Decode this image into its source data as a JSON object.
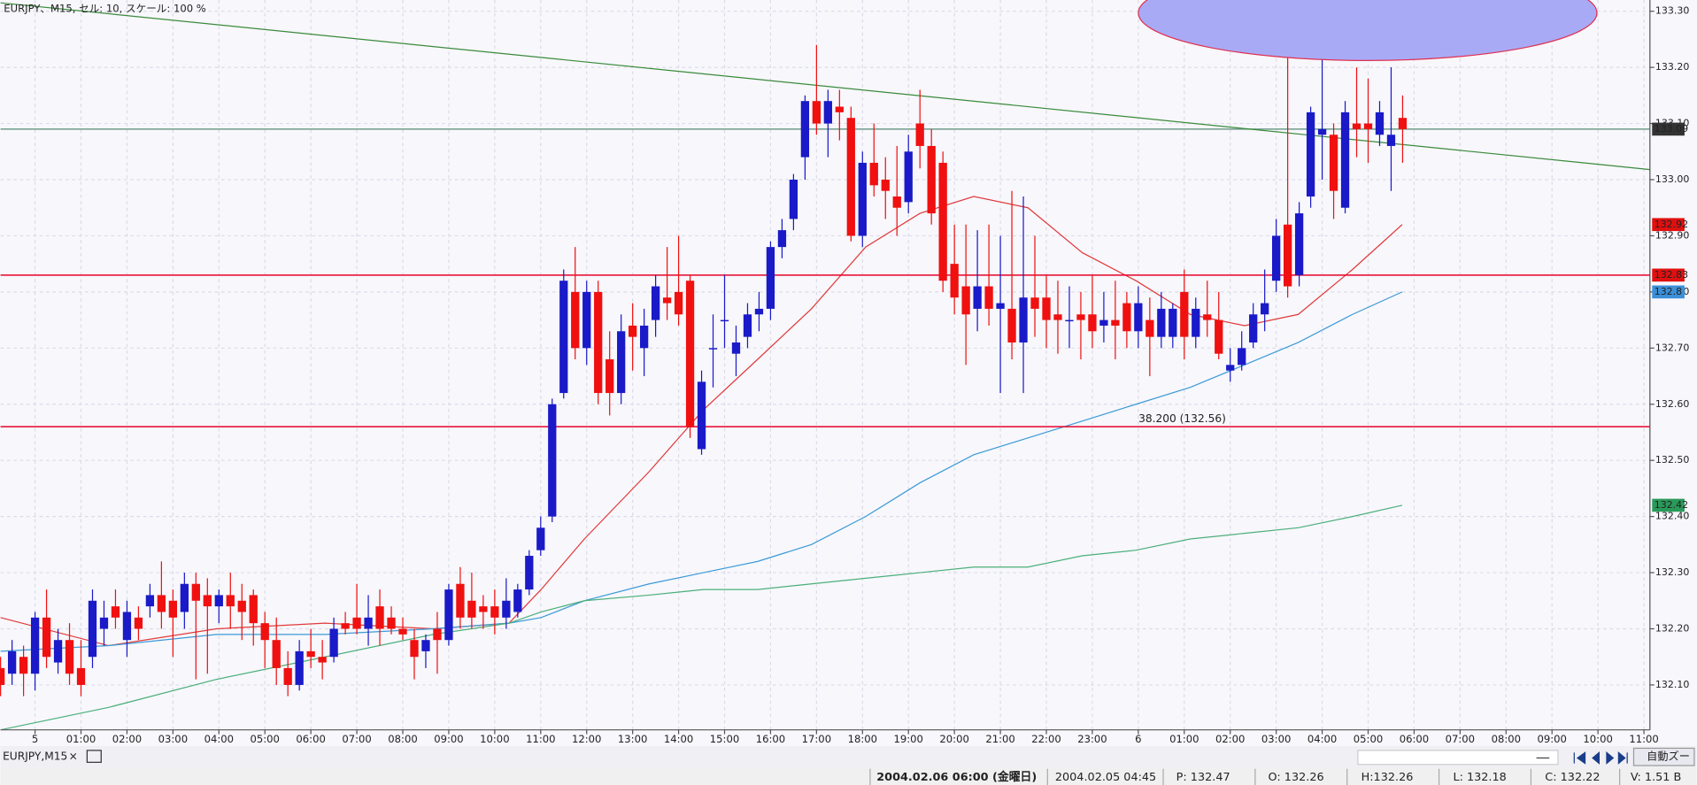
{
  "window": {
    "title": "EURJPY、M15, セル: 10, スケール: 100 %",
    "tab": "EURJPY,M15",
    "zoom_button": "自動ズー",
    "status": [
      "2004.02.06 06:00 (金曜日)",
      "2004.02.05 04:45",
      "P: 132.47",
      "O: 132.26",
      "H:132.26",
      "L: 132.18",
      "C: 132.22",
      "V: 1.51 B"
    ]
  },
  "chart_data": {
    "type": "candlestick",
    "xlim": [
      -0.75,
      35.13
    ],
    "ylim": [
      132.02,
      133.32
    ],
    "grid": true,
    "up_color": "#1a1ac8",
    "down_color": "#f01010",
    "xticks": [
      {
        "value": 0,
        "label": "5"
      },
      {
        "value": 1,
        "label": "01:00"
      },
      {
        "value": 2,
        "label": "02:00"
      },
      {
        "value": 3,
        "label": "03:00"
      },
      {
        "value": 4,
        "label": "04:00"
      },
      {
        "value": 5,
        "label": "05:00"
      },
      {
        "value": 6,
        "label": "06:00"
      },
      {
        "value": 7,
        "label": "07:00"
      },
      {
        "value": 8,
        "label": "08:00"
      },
      {
        "value": 9,
        "label": "09:00"
      },
      {
        "value": 10,
        "label": "10:00"
      },
      {
        "value": 11,
        "label": "11:00"
      },
      {
        "value": 12,
        "label": "12:00"
      },
      {
        "value": 13,
        "label": "13:00"
      },
      {
        "value": 14,
        "label": "14:00"
      },
      {
        "value": 15,
        "label": "15:00"
      },
      {
        "value": 16,
        "label": "16:00"
      },
      {
        "value": 17,
        "label": "17:00"
      },
      {
        "value": 18,
        "label": "18:00"
      },
      {
        "value": 19,
        "label": "19:00"
      },
      {
        "value": 20,
        "label": "20:00"
      },
      {
        "value": 21,
        "label": "21:00"
      },
      {
        "value": 22,
        "label": "22:00"
      },
      {
        "value": 23,
        "label": "23:00"
      },
      {
        "value": 24,
        "label": "6"
      },
      {
        "value": 25,
        "label": "01:00"
      },
      {
        "value": 26,
        "label": "02:00"
      },
      {
        "value": 27,
        "label": "03:00"
      },
      {
        "value": 28,
        "label": "04:00"
      },
      {
        "value": 29,
        "label": "05:00"
      },
      {
        "value": 30,
        "label": "06:00"
      },
      {
        "value": 31,
        "label": "07:00"
      },
      {
        "value": 32,
        "label": "08:00"
      },
      {
        "value": 33,
        "label": "09:00"
      },
      {
        "value": 34,
        "label": "10:00"
      },
      {
        "value": 35,
        "label": "11:00"
      }
    ],
    "yticks": [
      {
        "value": 132.1,
        "label": "132.10"
      },
      {
        "value": 132.2,
        "label": "132.20"
      },
      {
        "value": 132.3,
        "label": "132.30"
      },
      {
        "value": 132.4,
        "label": "132.40"
      },
      {
        "value": 132.5,
        "label": "132.50"
      },
      {
        "value": 132.6,
        "label": "132.60"
      },
      {
        "value": 132.7,
        "label": "132.70"
      },
      {
        "value": 132.8,
        "label": "132.80"
      },
      {
        "value": 132.9,
        "label": "132.90"
      },
      {
        "value": 133.0,
        "label": "133.00"
      },
      {
        "value": 133.1,
        "label": "133.10"
      },
      {
        "value": 133.2,
        "label": "133.20"
      },
      {
        "value": 133.3,
        "label": "133.30"
      }
    ],
    "x": [
      -0.75,
      -0.5,
      -0.25,
      0,
      0.25,
      0.5,
      0.75,
      1,
      1.25,
      1.5,
      1.75,
      2,
      2.25,
      2.5,
      2.75,
      3,
      3.25,
      3.5,
      3.75,
      4,
      4.25,
      4.5,
      4.75,
      5,
      5.25,
      5.5,
      5.75,
      6,
      6.25,
      6.5,
      6.75,
      7,
      7.25,
      7.5,
      7.75,
      8,
      8.25,
      8.5,
      8.75,
      9,
      9.25,
      9.5,
      9.75,
      10,
      10.25,
      10.5,
      10.75,
      11,
      11.25,
      11.5,
      11.75,
      12,
      12.25,
      12.5,
      12.75,
      13,
      13.25,
      13.5,
      13.75,
      14,
      14.25,
      14.5,
      14.75,
      15,
      15.25,
      15.5,
      15.75,
      16,
      16.25,
      16.5,
      16.75,
      17,
      17.25,
      17.5,
      17.75,
      18,
      18.25,
      18.5,
      18.75,
      19,
      19.25,
      19.5,
      19.75,
      20,
      20.25,
      20.5,
      20.75,
      21,
      21.25,
      21.5,
      21.75,
      22,
      22.25,
      22.5,
      22.75,
      23,
      23.25,
      23.5,
      23.75,
      24,
      24.25,
      24.5,
      24.75,
      25,
      25.25,
      25.5,
      25.75,
      26,
      26.25,
      26.5,
      26.75,
      27,
      27.25,
      27.5,
      27.75,
      28,
      28.25,
      28.5,
      28.75,
      29,
      29.25,
      29.5,
      29.75
    ],
    "ohlc": [
      [
        132.13,
        132.15,
        132.08,
        132.1
      ],
      [
        132.12,
        132.18,
        132.1,
        132.16
      ],
      [
        132.15,
        132.17,
        132.08,
        132.12
      ],
      [
        132.12,
        132.23,
        132.09,
        132.22
      ],
      [
        132.22,
        132.27,
        132.13,
        132.15
      ],
      [
        132.14,
        132.2,
        132.12,
        132.18
      ],
      [
        132.18,
        132.21,
        132.1,
        132.12
      ],
      [
        132.13,
        132.18,
        132.08,
        132.1
      ],
      [
        132.15,
        132.27,
        132.13,
        132.25
      ],
      [
        132.2,
        132.25,
        132.17,
        132.22
      ],
      [
        132.24,
        132.27,
        132.2,
        132.22
      ],
      [
        132.18,
        132.25,
        132.15,
        132.23
      ],
      [
        132.22,
        132.24,
        132.18,
        132.2
      ],
      [
        132.24,
        132.28,
        132.22,
        132.26
      ],
      [
        132.26,
        132.32,
        132.2,
        132.23
      ],
      [
        132.25,
        132.27,
        132.15,
        132.22
      ],
      [
        132.23,
        132.3,
        132.2,
        132.28
      ],
      [
        132.28,
        132.3,
        132.11,
        132.25
      ],
      [
        132.26,
        132.29,
        132.12,
        132.24
      ],
      [
        132.24,
        132.27,
        132.21,
        132.26
      ],
      [
        132.26,
        132.3,
        132.2,
        132.24
      ],
      [
        132.25,
        132.28,
        132.18,
        132.23
      ],
      [
        132.26,
        132.27,
        132.17,
        132.21
      ],
      [
        132.21,
        132.23,
        132.13,
        132.18
      ],
      [
        132.18,
        132.22,
        132.1,
        132.13
      ],
      [
        132.13,
        132.16,
        132.08,
        132.1
      ],
      [
        132.1,
        132.18,
        132.09,
        132.16
      ],
      [
        132.16,
        132.2,
        132.13,
        132.15
      ],
      [
        132.15,
        132.18,
        132.11,
        132.14
      ],
      [
        132.15,
        132.22,
        132.14,
        132.2
      ],
      [
        132.21,
        132.23,
        132.19,
        132.2
      ],
      [
        132.22,
        132.28,
        132.19,
        132.2
      ],
      [
        132.2,
        132.26,
        132.17,
        132.22
      ],
      [
        132.24,
        132.27,
        132.17,
        132.2
      ],
      [
        132.22,
        132.24,
        132.19,
        132.2
      ],
      [
        132.2,
        132.22,
        132.18,
        132.19
      ],
      [
        132.18,
        132.2,
        132.11,
        132.15
      ],
      [
        132.16,
        132.19,
        132.13,
        132.18
      ],
      [
        132.2,
        132.23,
        132.12,
        132.18
      ],
      [
        132.18,
        132.28,
        132.17,
        132.27
      ],
      [
        132.28,
        132.31,
        132.2,
        132.22
      ],
      [
        132.25,
        132.3,
        132.2,
        132.22
      ],
      [
        132.24,
        132.26,
        132.2,
        132.23
      ],
      [
        132.24,
        132.27,
        132.19,
        132.22
      ],
      [
        132.22,
        132.29,
        132.2,
        132.25
      ],
      [
        132.23,
        132.28,
        132.22,
        132.27
      ],
      [
        132.27,
        132.34,
        132.26,
        132.33
      ],
      [
        132.34,
        132.4,
        132.33,
        132.38
      ],
      [
        132.4,
        132.61,
        132.39,
        132.6
      ],
      [
        132.62,
        132.84,
        132.61,
        132.82
      ],
      [
        132.8,
        132.88,
        132.68,
        132.7
      ],
      [
        132.7,
        132.82,
        132.67,
        132.8
      ],
      [
        132.8,
        132.82,
        132.6,
        132.62
      ],
      [
        132.68,
        132.73,
        132.58,
        132.62
      ],
      [
        132.62,
        132.76,
        132.6,
        132.73
      ],
      [
        132.74,
        132.78,
        132.66,
        132.72
      ],
      [
        132.7,
        132.77,
        132.65,
        132.74
      ],
      [
        132.75,
        132.83,
        132.72,
        132.81
      ],
      [
        132.79,
        132.88,
        132.75,
        132.78
      ],
      [
        132.8,
        132.9,
        132.74,
        132.76
      ],
      [
        132.82,
        132.83,
        132.54,
        132.56
      ],
      [
        132.52,
        132.66,
        132.51,
        132.64
      ],
      [
        132.7,
        132.76,
        132.63,
        132.7
      ],
      [
        132.75,
        132.83,
        132.7,
        132.75
      ],
      [
        132.69,
        132.74,
        132.65,
        132.71
      ],
      [
        132.72,
        132.78,
        132.7,
        132.76
      ],
      [
        132.76,
        132.8,
        132.73,
        132.77
      ],
      [
        132.77,
        132.89,
        132.75,
        132.88
      ],
      [
        132.88,
        132.93,
        132.86,
        132.91
      ],
      [
        132.93,
        133.01,
        132.91,
        133.0
      ],
      [
        133.04,
        133.15,
        133.0,
        133.14
      ],
      [
        133.14,
        133.24,
        133.08,
        133.1
      ],
      [
        133.1,
        133.16,
        133.04,
        133.14
      ],
      [
        133.13,
        133.16,
        133.07,
        133.12
      ],
      [
        133.11,
        133.13,
        132.89,
        132.9
      ],
      [
        132.9,
        133.05,
        132.88,
        133.03
      ],
      [
        133.03,
        133.1,
        132.97,
        132.99
      ],
      [
        133.0,
        133.04,
        132.93,
        132.98
      ],
      [
        132.97,
        133.06,
        132.9,
        132.95
      ],
      [
        132.96,
        133.08,
        132.94,
        133.05
      ],
      [
        133.1,
        133.16,
        133.02,
        133.06
      ],
      [
        133.06,
        133.09,
        132.92,
        132.94
      ],
      [
        133.03,
        133.05,
        132.8,
        132.82
      ],
      [
        132.85,
        132.92,
        132.76,
        132.79
      ],
      [
        132.81,
        132.92,
        132.67,
        132.76
      ],
      [
        132.77,
        132.91,
        132.73,
        132.81
      ],
      [
        132.81,
        132.92,
        132.74,
        132.77
      ],
      [
        132.77,
        132.9,
        132.62,
        132.78
      ],
      [
        132.77,
        132.98,
        132.68,
        132.71
      ],
      [
        132.71,
        132.97,
        132.62,
        132.79
      ],
      [
        132.79,
        132.9,
        132.72,
        132.77
      ],
      [
        132.79,
        132.83,
        132.7,
        132.75
      ],
      [
        132.76,
        132.82,
        132.69,
        132.75
      ],
      [
        132.75,
        132.81,
        132.7,
        132.75
      ],
      [
        132.76,
        132.8,
        132.68,
        132.75
      ],
      [
        132.76,
        132.83,
        132.7,
        132.73
      ],
      [
        132.74,
        132.8,
        132.71,
        132.75
      ],
      [
        132.75,
        132.82,
        132.68,
        132.74
      ],
      [
        132.78,
        132.8,
        132.7,
        132.73
      ],
      [
        132.73,
        132.81,
        132.7,
        132.78
      ],
      [
        132.75,
        132.79,
        132.65,
        132.72
      ],
      [
        132.72,
        132.8,
        132.7,
        132.77
      ],
      [
        132.72,
        132.78,
        132.7,
        132.77
      ],
      [
        132.8,
        132.84,
        132.68,
        132.72
      ],
      [
        132.72,
        132.79,
        132.7,
        132.77
      ],
      [
        132.76,
        132.82,
        132.72,
        132.75
      ],
      [
        132.75,
        132.8,
        132.68,
        132.69
      ],
      [
        132.66,
        132.7,
        132.64,
        132.67
      ],
      [
        132.67,
        132.73,
        132.66,
        132.7
      ],
      [
        132.71,
        132.78,
        132.7,
        132.76
      ],
      [
        132.76,
        132.84,
        132.73,
        132.78
      ],
      [
        132.82,
        132.93,
        132.8,
        132.9
      ],
      [
        132.92,
        133.27,
        132.79,
        132.81
      ],
      [
        132.83,
        132.96,
        132.81,
        132.94
      ],
      [
        132.97,
        133.13,
        132.95,
        133.12
      ],
      [
        133.08,
        133.22,
        133.0,
        133.09
      ],
      [
        133.08,
        133.1,
        132.93,
        132.98
      ],
      [
        132.95,
        133.14,
        132.94,
        133.12
      ],
      [
        133.1,
        133.2,
        133.04,
        133.09
      ],
      [
        133.1,
        133.18,
        133.03,
        133.09
      ],
      [
        133.08,
        133.14,
        133.06,
        133.12
      ],
      [
        133.06,
        133.2,
        132.98,
        133.08
      ],
      [
        133.11,
        133.15,
        133.03,
        133.09
      ]
    ],
    "ma_x": [
      -0.75,
      1.6,
      3.95,
      6.31,
      8.66,
      10.31,
      11.01,
      11.95,
      13.36,
      14.54,
      15.72,
      16.89,
      18.07,
      19.25,
      20.42,
      21.6,
      22.78,
      23.95,
      25.13,
      26.31,
      27.48,
      28.66,
      29.74
    ],
    "moving_averages": [
      {
        "color": "#e23a3a",
        "values": [
          132.22,
          132.17,
          132.2,
          132.21,
          132.2,
          132.21,
          132.27,
          132.36,
          132.48,
          132.59,
          132.68,
          132.77,
          132.88,
          132.94,
          132.97,
          132.95,
          132.87,
          132.82,
          132.76,
          132.74,
          132.76,
          132.84,
          132.92
        ]
      },
      {
        "color": "#3c9ad6",
        "values": [
          132.16,
          132.17,
          132.19,
          132.19,
          132.2,
          132.21,
          132.22,
          132.25,
          132.28,
          132.3,
          132.32,
          132.35,
          132.4,
          132.46,
          132.51,
          132.54,
          132.57,
          132.6,
          132.63,
          132.67,
          132.71,
          132.76,
          132.8
        ]
      },
      {
        "color": "#4caf7a",
        "values": [
          132.02,
          132.06,
          132.11,
          132.15,
          132.19,
          132.21,
          132.23,
          132.25,
          132.26,
          132.27,
          132.27,
          132.28,
          132.29,
          132.3,
          132.31,
          132.31,
          132.33,
          132.34,
          132.36,
          132.37,
          132.38,
          132.4,
          132.42
        ]
      }
    ],
    "hlines": [
      {
        "value": 133.09,
        "color": "#6f9c8c"
      },
      {
        "value": 132.83,
        "color": "#e8002a"
      },
      {
        "value": 132.56,
        "color": "#e8002a",
        "label": "38.200 (132.56)"
      }
    ],
    "trendline": {
      "color": "#3a8a3a",
      "x": [
        -0.75,
        35.13
      ],
      "values": [
        133.315,
        133.018
      ]
    },
    "price_labels": [
      {
        "value": 133.09,
        "color": "#333333"
      },
      {
        "value": 132.92,
        "color": "#e01010"
      },
      {
        "value": 132.83,
        "color": "#e01010"
      },
      {
        "value": 132.8,
        "color": "#3c8fd8"
      },
      {
        "value": 132.42,
        "color": "#2a9a5a"
      }
    ]
  }
}
